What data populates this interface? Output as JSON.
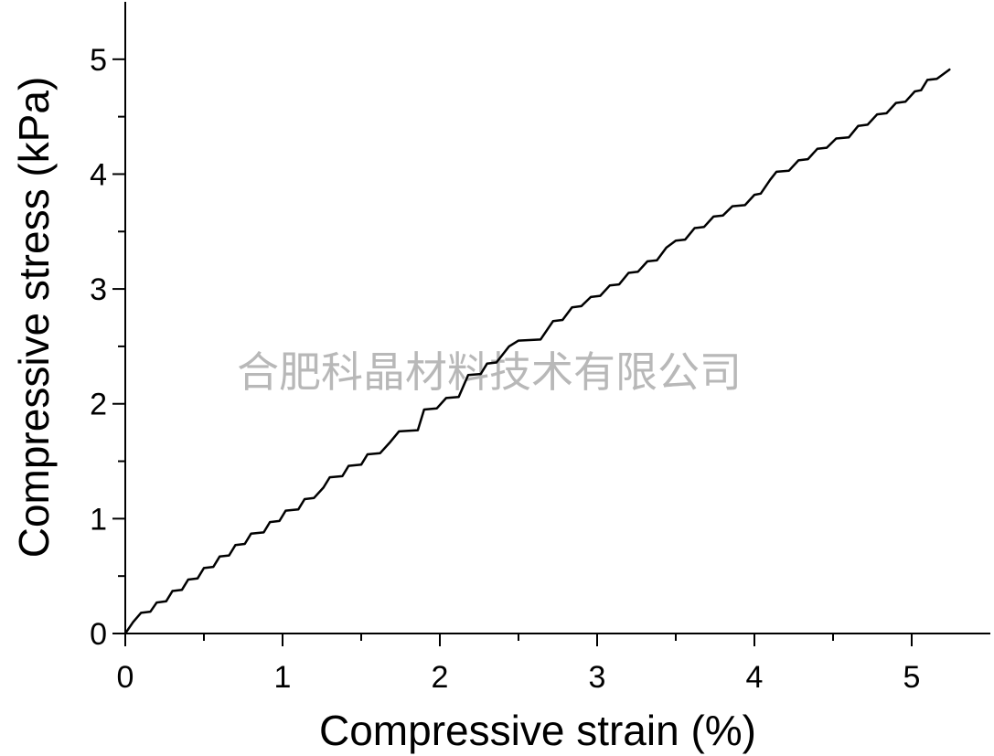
{
  "watermark": "合肥科晶材料技术有限公司",
  "chart_data": {
    "type": "line",
    "xlabel": "Compressive strain (%)",
    "ylabel": "Compressive stress (kPa)",
    "xlim": [
      0,
      5.5
    ],
    "ylim": [
      0,
      5.5
    ],
    "x_ticks": [
      0,
      1,
      2,
      3,
      4,
      5
    ],
    "y_ticks": [
      0,
      1,
      2,
      3,
      4,
      5
    ],
    "grid": false,
    "series": [
      {
        "color": "#000000",
        "points": [
          [
            0,
            0
          ],
          [
            0.05,
            0.1
          ],
          [
            0.1,
            0.18
          ],
          [
            0.16,
            0.19
          ],
          [
            0.2,
            0.27
          ],
          [
            0.26,
            0.28
          ],
          [
            0.3,
            0.37
          ],
          [
            0.36,
            0.38
          ],
          [
            0.4,
            0.47
          ],
          [
            0.46,
            0.48
          ],
          [
            0.5,
            0.57
          ],
          [
            0.56,
            0.58
          ],
          [
            0.6,
            0.67
          ],
          [
            0.66,
            0.68
          ],
          [
            0.7,
            0.77
          ],
          [
            0.76,
            0.78
          ],
          [
            0.8,
            0.87
          ],
          [
            0.88,
            0.88
          ],
          [
            0.92,
            0.97
          ],
          [
            0.98,
            0.98
          ],
          [
            1.02,
            1.07
          ],
          [
            1.1,
            1.08
          ],
          [
            1.14,
            1.17
          ],
          [
            1.2,
            1.18
          ],
          [
            1.26,
            1.27
          ],
          [
            1.3,
            1.36
          ],
          [
            1.38,
            1.37
          ],
          [
            1.42,
            1.46
          ],
          [
            1.5,
            1.47
          ],
          [
            1.54,
            1.56
          ],
          [
            1.62,
            1.57
          ],
          [
            1.68,
            1.66
          ],
          [
            1.74,
            1.76
          ],
          [
            1.86,
            1.77
          ],
          [
            1.9,
            1.95
          ],
          [
            1.98,
            1.96
          ],
          [
            2.04,
            2.05
          ],
          [
            2.12,
            2.06
          ],
          [
            2.18,
            2.25
          ],
          [
            2.26,
            2.26
          ],
          [
            2.3,
            2.35
          ],
          [
            2.36,
            2.36
          ],
          [
            2.44,
            2.5
          ],
          [
            2.5,
            2.55
          ],
          [
            2.64,
            2.56
          ],
          [
            2.72,
            2.72
          ],
          [
            2.78,
            2.73
          ],
          [
            2.84,
            2.84
          ],
          [
            2.9,
            2.85
          ],
          [
            2.96,
            2.93
          ],
          [
            3.02,
            2.94
          ],
          [
            3.08,
            3.03
          ],
          [
            3.14,
            3.04
          ],
          [
            3.2,
            3.14
          ],
          [
            3.26,
            3.15
          ],
          [
            3.32,
            3.24
          ],
          [
            3.38,
            3.25
          ],
          [
            3.44,
            3.36
          ],
          [
            3.5,
            3.42
          ],
          [
            3.56,
            3.43
          ],
          [
            3.62,
            3.53
          ],
          [
            3.68,
            3.54
          ],
          [
            3.74,
            3.63
          ],
          [
            3.8,
            3.64
          ],
          [
            3.86,
            3.72
          ],
          [
            3.94,
            3.73
          ],
          [
            4.0,
            3.82
          ],
          [
            4.04,
            3.83
          ],
          [
            4.1,
            3.95
          ],
          [
            4.14,
            4.02
          ],
          [
            4.22,
            4.03
          ],
          [
            4.28,
            4.12
          ],
          [
            4.34,
            4.13
          ],
          [
            4.4,
            4.22
          ],
          [
            4.46,
            4.23
          ],
          [
            4.52,
            4.31
          ],
          [
            4.6,
            4.32
          ],
          [
            4.66,
            4.42
          ],
          [
            4.72,
            4.43
          ],
          [
            4.78,
            4.52
          ],
          [
            4.84,
            4.53
          ],
          [
            4.9,
            4.62
          ],
          [
            4.96,
            4.63
          ],
          [
            5.02,
            4.72
          ],
          [
            5.06,
            4.73
          ],
          [
            5.1,
            4.82
          ],
          [
            5.16,
            4.83
          ],
          [
            5.24,
            4.91
          ]
        ]
      }
    ]
  }
}
